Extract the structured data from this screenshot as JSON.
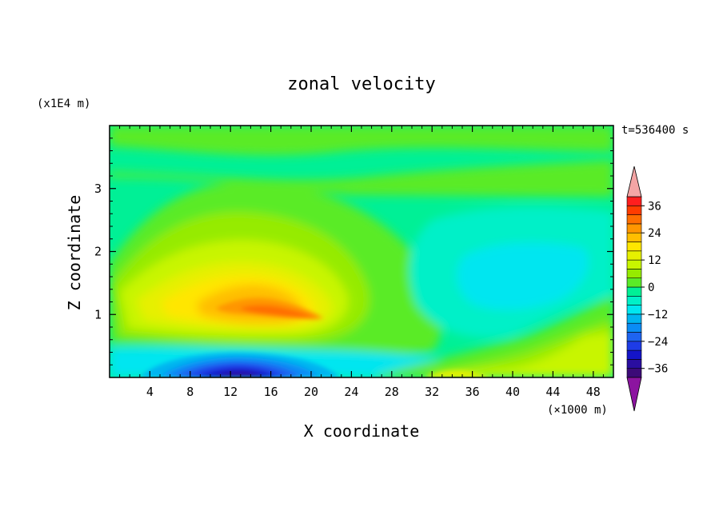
{
  "chart_data": {
    "type": "heatmap",
    "title": "zonal velocity",
    "xlabel": "X coordinate",
    "ylabel": "Z coordinate",
    "x_unit": "(×1000 m)",
    "y_unit": "(x1E4 m)",
    "time_label": "t=536400 s",
    "xlim": [
      0,
      50
    ],
    "ylim": [
      0,
      4
    ],
    "x_ticks": [
      "4",
      "8",
      "12",
      "16",
      "20",
      "24",
      "28",
      "32",
      "36",
      "40",
      "44",
      "48"
    ],
    "y_ticks": [
      "1",
      "2",
      "3"
    ],
    "colorbar": {
      "levels": [
        -40,
        -36,
        -32,
        -28,
        -24,
        -20,
        -16,
        -12,
        -8,
        -4,
        0,
        4,
        8,
        12,
        16,
        20,
        24,
        28,
        32,
        36,
        40
      ],
      "colors": [
        "#3c0a78",
        "#2a0ea0",
        "#1414c8",
        "#1e3ce6",
        "#1e64f0",
        "#0a8cf5",
        "#00b4f0",
        "#00e6f0",
        "#00f0c8",
        "#00f096",
        "#5aeb28",
        "#96eb00",
        "#c8f500",
        "#e6f000",
        "#ffe600",
        "#ffbe00",
        "#ff9600",
        "#ff6e00",
        "#ff3c00",
        "#ff1e1e"
      ],
      "under_color": "#8c14a0",
      "over_color": "#f4a5a5",
      "tick_labels": [
        "36",
        "24",
        "12",
        "0",
        "−12",
        "−24",
        "−36"
      ],
      "tick_values": [
        36,
        24,
        12,
        0,
        -12,
        -24,
        -36
      ]
    },
    "features": [
      {
        "feature": "westerly jet core",
        "x": 14,
        "z": 1.1,
        "max_value": 27
      },
      {
        "feature": "near-surface easterly core",
        "x": 13,
        "z": 0.05,
        "min_value": -36
      },
      {
        "feature": "weak easterly region",
        "x": 40,
        "z": 1.6,
        "min_value": -10
      },
      {
        "feature": "weak westerly surface band",
        "x": 36,
        "z": 0.1,
        "max_value": 14
      }
    ]
  }
}
